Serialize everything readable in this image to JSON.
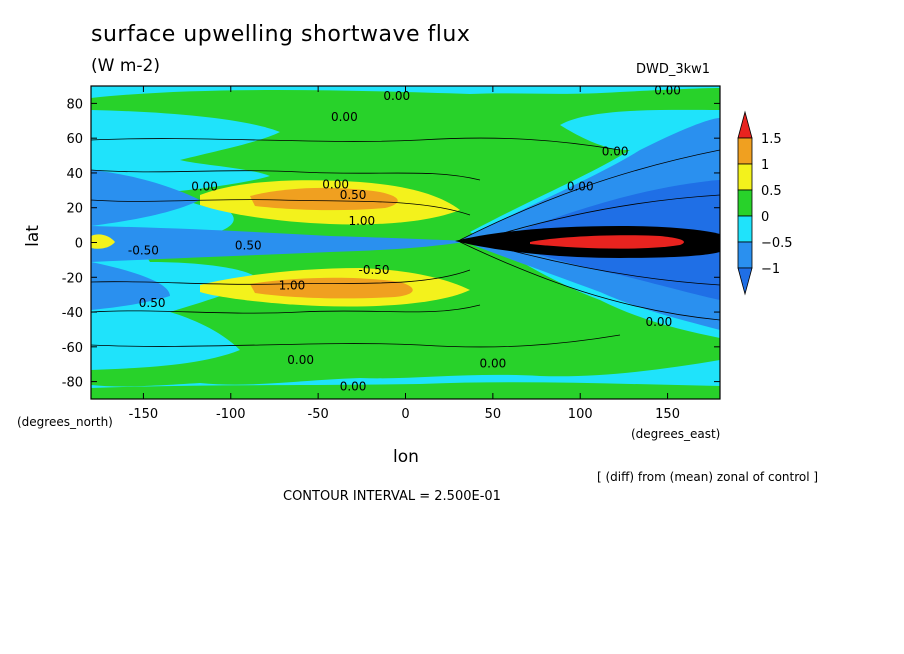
{
  "chart_data": {
    "type": "heatmap",
    "title": "surface upwelling shortwave flux",
    "units": "(W m-2)",
    "run_id": "DWD_3kw1",
    "xlabel": "lon",
    "ylabel": "lat",
    "x_units": "(degrees_east)",
    "y_units": "(degrees_north)",
    "xlim": [
      -180,
      180
    ],
    "ylim": [
      -90,
      90
    ],
    "x_ticks": [
      -150,
      -100,
      -50,
      0,
      50,
      100,
      150
    ],
    "y_ticks": [
      -80,
      -60,
      -40,
      -20,
      0,
      20,
      40,
      60,
      80
    ],
    "colorbar": {
      "levels": [
        1.5,
        1,
        0.5,
        0,
        -0.5,
        -1
      ],
      "colors": [
        "#e8231f",
        "#f0a020",
        "#f3f21c",
        "#28d22a",
        "#1fe3fb",
        "#2a90ef",
        "#1f6fe6"
      ]
    },
    "contour_labels": [
      "0.00",
      "0.00",
      "0.00",
      "0.00",
      "0.00",
      "0.00",
      "0.00",
      "0.50",
      "1.00",
      "0.50",
      "-0.50",
      "-0.50",
      "1.00",
      "0.50",
      "0.00",
      "0.00",
      "0.00",
      "0.00"
    ],
    "grid": false,
    "legend": "right"
  },
  "note": "[ (diff) from (mean) zonal of control ]",
  "contour_interval": "CONTOUR INTERVAL = 2.500E-01"
}
